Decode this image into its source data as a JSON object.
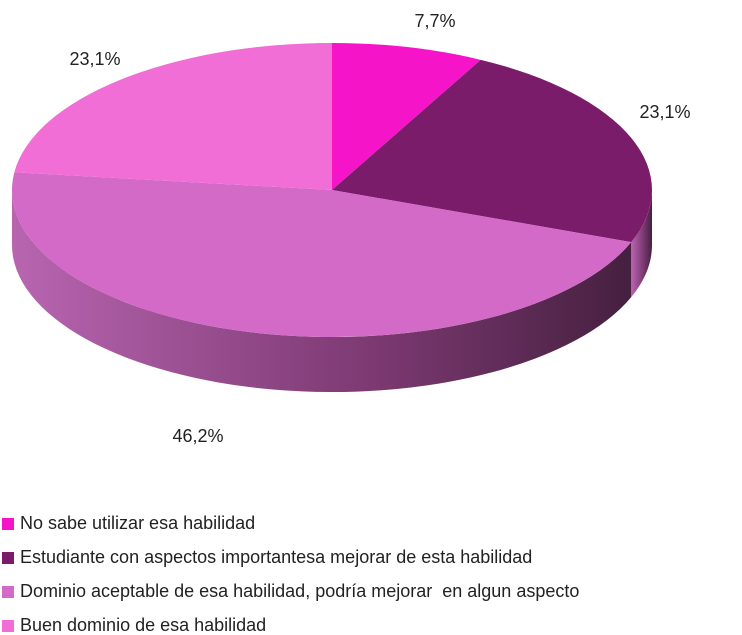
{
  "chart_data": {
    "type": "pie",
    "categories": [
      "No sabe utilizar esa habilidad",
      "Estudiante con aspectos importantesa mejorar de esta habilidad",
      "Dominio aceptable de esa habilidad, podría mejorar  en algun aspecto",
      "Buen dominio de esa habilidad"
    ],
    "values": [
      7.7,
      23.1,
      46.2,
      23.1
    ],
    "value_labels": [
      "7,7%",
      "23,1%",
      "46,2%",
      "23,1%"
    ],
    "colors": [
      "#f514c8",
      "#7b1c6a",
      "#d46ac8",
      "#f06ed6"
    ],
    "legend": "bottom-left"
  }
}
